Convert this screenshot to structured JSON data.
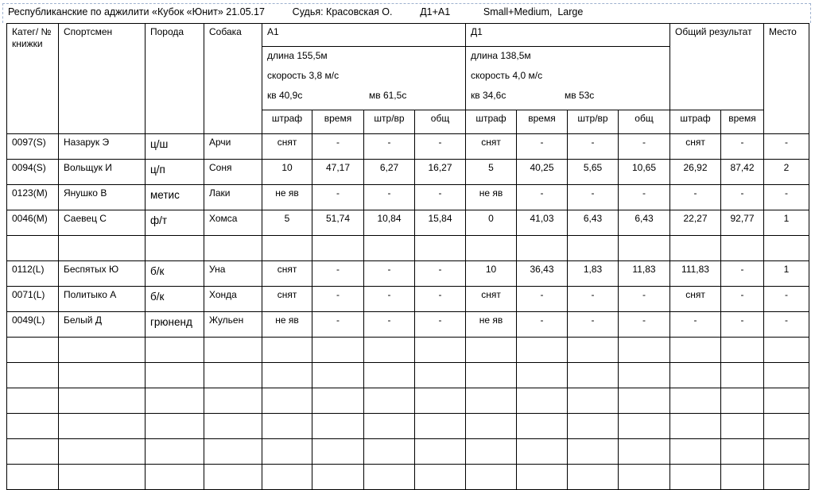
{
  "header": {
    "event": "Республиканские по аджилити «Кубок «Юнит» 21.05.17",
    "judge": "Судья: Красовская О.",
    "runs": "Д1+А1",
    "classes": "Small+Medium,  Large"
  },
  "columns": {
    "category": "Катег/ № книжки",
    "athlete": "Спортсмен",
    "breed": "Порода",
    "dog": "Собака",
    "total_result": "Общий результат",
    "place": "Место"
  },
  "runs": [
    {
      "name": "А1",
      "length": "длина 155,5м",
      "speed": "скорость 3,8 м/с",
      "kv": "кв  40,9с",
      "mv": "мв  61,5с",
      "sub": [
        "штраф",
        "время",
        "штр/вр",
        "общ"
      ]
    },
    {
      "name": "Д1",
      "length": "длина 138,5м",
      "speed": "скорость 4,0 м/с",
      "kv": "кв  34,6с",
      "mv": "мв 53с",
      "sub": [
        "штраф",
        "время",
        "штр/вр",
        "общ"
      ]
    }
  ],
  "total_sub": [
    "штраф",
    "время"
  ],
  "rows": [
    [
      "0097(S)",
      "Назарук Э",
      "ц/ш",
      "Арчи",
      "снят",
      "-",
      "-",
      "-",
      "снят",
      "-",
      "-",
      "-",
      "снят",
      "-",
      "-"
    ],
    [
      "0094(S)",
      "Вольщук И",
      "ц/п",
      "Соня",
      "10",
      "47,17",
      "6,27",
      "16,27",
      "5",
      "40,25",
      "5,65",
      "10,65",
      "26,92",
      "87,42",
      "2"
    ],
    [
      "0123(M)",
      "Янушко В",
      "метис",
      "Лаки",
      "не яв",
      "-",
      "-",
      "-",
      "не яв",
      "-",
      "-",
      "-",
      "-",
      "-",
      "-"
    ],
    [
      "0046(M)",
      "Саевец С",
      "ф/т",
      "Хомса",
      "5",
      "51,74",
      "10,84",
      "15,84",
      "0",
      "41,03",
      "6,43",
      "6,43",
      "22,27",
      "92,77",
      "1"
    ],
    [
      "",
      "",
      "",
      "",
      "",
      "",
      "",
      "",
      "",
      "",
      "",
      "",
      "",
      "",
      ""
    ],
    [
      "0112(L)",
      "Беспятых Ю",
      "б/к",
      "Уна",
      "снят",
      "-",
      "-",
      "-",
      "10",
      "36,43",
      "1,83",
      "11,83",
      "111,83",
      "-",
      "1"
    ],
    [
      "0071(L)",
      "Политыко А",
      "б/к",
      "Хонда",
      "снят",
      "-",
      "-",
      "-",
      "снят",
      "-",
      "-",
      "-",
      "снят",
      "-",
      "-"
    ],
    [
      "0049(L)",
      "Белый Д",
      "грюненд",
      "Жульен",
      "не яв",
      "-",
      "-",
      "-",
      "не яв",
      "-",
      "-",
      "-",
      "-",
      "-",
      "-"
    ],
    [
      "",
      "",
      "",
      "",
      "",
      "",
      "",
      "",
      "",
      "",
      "",
      "",
      "",
      "",
      ""
    ],
    [
      "",
      "",
      "",
      "",
      "",
      "",
      "",
      "",
      "",
      "",
      "",
      "",
      "",
      "",
      ""
    ],
    [
      "",
      "",
      "",
      "",
      "",
      "",
      "",
      "",
      "",
      "",
      "",
      "",
      "",
      "",
      ""
    ],
    [
      "",
      "",
      "",
      "",
      "",
      "",
      "",
      "",
      "",
      "",
      "",
      "",
      "",
      "",
      ""
    ],
    [
      "",
      "",
      "",
      "",
      "",
      "",
      "",
      "",
      "",
      "",
      "",
      "",
      "",
      "",
      ""
    ],
    [
      "",
      "",
      "",
      "",
      "",
      "",
      "",
      "",
      "",
      "",
      "",
      "",
      "",
      "",
      ""
    ]
  ]
}
